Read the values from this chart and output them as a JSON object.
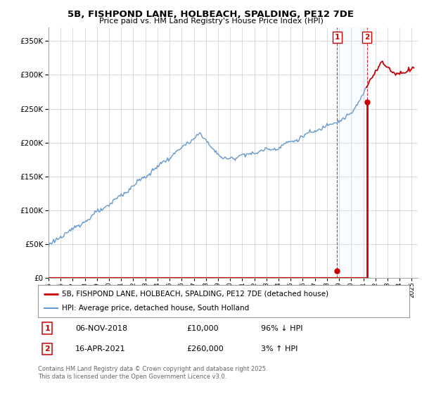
{
  "title_line1": "5B, FISHPOND LANE, HOLBEACH, SPALDING, PE12 7DE",
  "title_line2": "Price paid vs. HM Land Registry's House Price Index (HPI)",
  "background_color": "#ffffff",
  "plot_bg_color": "#ffffff",
  "grid_color": "#cccccc",
  "hpi_color": "#6699cc",
  "price_color": "#cc0000",
  "shade_color": "#ddeeff",
  "transaction1": {
    "date": "06-NOV-2018",
    "price": 10000,
    "hpi_rel": "96% ↓ HPI",
    "label": "1",
    "year": 2018.84
  },
  "transaction2": {
    "date": "16-APR-2021",
    "price": 260000,
    "hpi_rel": "3% ↑ HPI",
    "label": "2",
    "year": 2021.29
  },
  "legend_line1": "5B, FISHPOND LANE, HOLBEACH, SPALDING, PE12 7DE (detached house)",
  "legend_line2": "HPI: Average price, detached house, South Holland",
  "footer": "Contains HM Land Registry data © Crown copyright and database right 2025.\nThis data is licensed under the Open Government Licence v3.0.",
  "ylim": [
    0,
    370000
  ],
  "yticks": [
    0,
    50000,
    100000,
    150000,
    200000,
    250000,
    300000,
    350000
  ],
  "xlim": [
    1995,
    2025.5
  ],
  "xtick_years": [
    1995,
    1996,
    1997,
    1998,
    1999,
    2000,
    2001,
    2002,
    2003,
    2004,
    2005,
    2006,
    2007,
    2008,
    2009,
    2010,
    2011,
    2012,
    2013,
    2014,
    2015,
    2016,
    2017,
    2018,
    2019,
    2020,
    2021,
    2022,
    2023,
    2024,
    2025
  ]
}
